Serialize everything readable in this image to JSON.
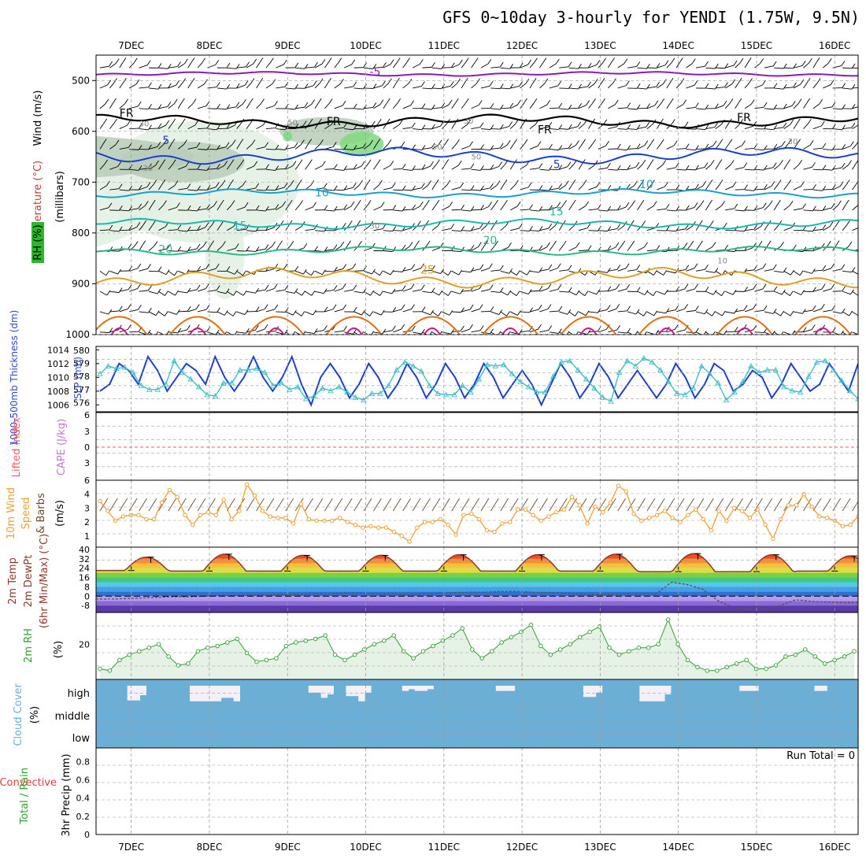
{
  "title": "GFS 0~10day 3-hourly for YENDI (1.75W, 9.5N)",
  "colors": {
    "frame": "#000000",
    "grid": "#9e9e9e",
    "rh_light": "#e3f0e3",
    "rh_mid": "#b8ccb8",
    "rh_dark": "#7fd97f",
    "wind_barb": "#000000",
    "slp": "#1f3fd0",
    "thickness": "#3cc0c8",
    "lifted_index": "#ff5a5a",
    "wind_speed": "#f0a030",
    "barb_10m": "#6b4a2a",
    "dewpoint": "#555555",
    "temp_curve": "#8b3a2a",
    "rh2m_fill": "#e6f2e6",
    "rh2m_line": "#2fa02f",
    "cloud": "#6baed6",
    "cloud_gap": "#f3f0f8",
    "temp_iso": [
      "#8a1ab8",
      "#1a3fd0",
      "#1a9fd0",
      "#1ab8b0",
      "#2ab88a",
      "#e0a020",
      "#e07010",
      "#d01a8a"
    ]
  },
  "chart_data": [
    {
      "type": "line",
      "panel": "upper-air",
      "ylabel_parts": [
        "Wind (m/s)",
        "Temperature (°C)",
        "RH (%)",
        "(millibars)"
      ],
      "y_ticks": [
        500,
        600,
        700,
        800,
        900,
        1000
      ],
      "ylim": [
        1000,
        450
      ],
      "x_ticks": [
        "7DEC",
        "8DEC",
        "9DEC",
        "10DEC",
        "11DEC",
        "12DEC",
        "13DEC",
        "14DEC",
        "15DEC",
        "16DEC"
      ],
      "isotherm_labels": [
        {
          "text": "-5",
          "day": 3.5,
          "p": 490
        },
        {
          "text": "FR",
          "day": 0.3,
          "p": 572
        },
        {
          "text": "FR",
          "day": 2.95,
          "p": 588
        },
        {
          "text": "FR",
          "day": 5.65,
          "p": 604
        },
        {
          "text": "FR",
          "day": 8.2,
          "p": 580
        },
        {
          "text": "5",
          "day": 0.85,
          "p": 625
        },
        {
          "text": "5",
          "day": 5.85,
          "p": 672
        },
        {
          "text": "10",
          "day": 2.8,
          "p": 728
        },
        {
          "text": "10",
          "day": 6.95,
          "p": 712
        },
        {
          "text": "15",
          "day": 1.75,
          "p": 793
        },
        {
          "text": "15",
          "day": 5.8,
          "p": 765
        },
        {
          "text": "20",
          "day": 0.8,
          "p": 840
        },
        {
          "text": "20",
          "day": 4.95,
          "p": 822
        },
        {
          "text": "25",
          "day": 4.15,
          "p": 880
        }
      ],
      "rh_labels": [
        {
          "text": "30",
          "day": 0.55,
          "p": 590
        },
        {
          "text": "30",
          "day": 0.6,
          "p": 678
        },
        {
          "text": "50",
          "day": 2.45,
          "p": 588
        },
        {
          "text": "30",
          "day": 4.7,
          "p": 585
        },
        {
          "text": "50",
          "day": 4.3,
          "p": 636
        },
        {
          "text": "50",
          "day": 4.8,
          "p": 655
        },
        {
          "text": "30",
          "day": 3.5,
          "p": 792
        },
        {
          "text": "30",
          "day": 8.85,
          "p": 625
        },
        {
          "text": "10",
          "day": 7.95,
          "p": 860
        }
      ],
      "isotherms": [
        {
          "name": "-5",
          "color": "#8a1ab8",
          "base": 487,
          "amp": 4
        },
        {
          "name": "FR",
          "color": "#000000",
          "base": 580,
          "amp": 12
        },
        {
          "name": "5",
          "color": "#1a3fd0",
          "base": 648,
          "amp": 15
        },
        {
          "name": "10",
          "color": "#1a9fd0",
          "base": 722,
          "amp": 8
        },
        {
          "name": "15",
          "color": "#1ab8b0",
          "base": 782,
          "amp": 9
        },
        {
          "name": "20",
          "color": "#2ab88a",
          "base": 835,
          "amp": 8
        },
        {
          "name": "25",
          "color": "#e0a020",
          "base": 888,
          "amp": 18
        }
      ]
    },
    {
      "type": "line",
      "panel": "slp-thickness",
      "ylabel_left": "1000-500mb Thickness (dm)",
      "ylabel_right": "SLP (mb)",
      "left_ticks": [
        576,
        577,
        578,
        579,
        580
      ],
      "right_ticks": [
        1006,
        1008,
        1010,
        1012,
        1014
      ],
      "slp_series": [
        1008,
        1009,
        1012,
        1011,
        1009,
        1013,
        1011,
        1008,
        1010,
        1012,
        1011,
        1009,
        1013,
        1010,
        1008,
        1010,
        1013,
        1010,
        1008,
        1010,
        1013,
        1009,
        1006,
        1010,
        1012,
        1010,
        1007,
        1009,
        1012,
        1010,
        1007,
        1009,
        1012,
        1010,
        1007,
        1009,
        1012,
        1010,
        1007,
        1009,
        1012,
        1010,
        1007,
        1009,
        1011,
        1009,
        1006,
        1009,
        1012,
        1010,
        1007,
        1009,
        1012,
        1010,
        1007,
        1009,
        1011,
        1009,
        1007,
        1009,
        1012,
        1010,
        1007,
        1009,
        1012,
        1011,
        1008,
        1009,
        1011,
        1010,
        1007,
        1009,
        1012,
        1010,
        1008,
        1009,
        1012,
        1010,
        1008,
        1012
      ],
      "thickness_series": [
        578.2,
        578.8,
        578.6,
        578.7,
        578.3,
        577.3,
        577.0,
        577.0,
        577.4,
        579.2,
        578.3,
        577.8,
        577.2,
        576.6,
        576.5,
        577.5,
        577.5,
        578.5,
        578.5,
        578.6,
        578.3,
        577.3,
        577.5,
        577.0,
        577.2,
        576.3,
        576.5,
        577.1,
        576.9,
        577.2,
        576.8,
        576.4,
        576.2,
        576.7,
        576.7,
        577.3,
        578.5,
        579.1,
        578.8,
        578.4,
        577.3,
        576.7,
        576.6,
        576.6,
        577.3,
        576.8,
        577.8,
        578.9,
        578.8,
        578.9,
        578.2,
        577.6,
        577.2,
        576.8,
        576.8,
        578.0,
        579.1,
        579.2,
        578.5,
        577.8,
        577.1,
        576.4,
        576.1,
        578.3,
        579.2,
        578.8,
        579.4,
        579.1,
        578.5,
        577.6,
        576.7,
        576.6,
        577.1,
        578.8,
        578.2,
        577.5,
        576.2,
        576.8,
        577.6,
        578.8,
        578.3,
        578.5,
        578.5,
        577.2,
        576.9,
        576.8,
        578.0,
        579.1,
        579.2,
        578.5,
        577.7,
        576.9,
        576.3
      ]
    },
    {
      "type": "line",
      "panel": "stability",
      "ylabel_left": "Lifted Index",
      "ylabel_right": "CAPE (J/kg)",
      "ticks": [
        "6",
        "3",
        "0",
        "3",
        "6"
      ],
      "lifted_index_line": 0
    },
    {
      "type": "line",
      "panel": "wind10m",
      "ylabel": "10m Wind Speed & Barbs (m/s)",
      "ylabel_lines": [
        "10m Wind",
        "Speed",
        "& Barbs"
      ],
      "ylabel_unit": "(m/s)",
      "ticks": [
        1,
        2,
        3,
        4
      ],
      "ylim": [
        0.2,
        5.0
      ],
      "speed_series": [
        3.5,
        2.8,
        2.1,
        2.4,
        2.5,
        2.5,
        2.2,
        2.2,
        3.4,
        4.3,
        3.8,
        2.5,
        1.8,
        2.5,
        2.7,
        2.5,
        3.6,
        2.2,
        2.8,
        4.7,
        3.9,
        2.8,
        2.4,
        2.3,
        2.3,
        1.9,
        3.3,
        2.2,
        2.1,
        2.1,
        2.1,
        2.3,
        2.0,
        1.8,
        1.6,
        1.7,
        1.6,
        1.6,
        1.3,
        1.0,
        0.6,
        1.6,
        2.0,
        2.0,
        2.2,
        1.8,
        1.1,
        2.5,
        2.6,
        2.2,
        1.4,
        1.3,
        1.9,
        2.0,
        2.9,
        2.9,
        2.5,
        2.1,
        2.4,
        2.7,
        2.9,
        3.8,
        3.2,
        1.9,
        3.1,
        2.7,
        3.4,
        4.6,
        4.2,
        2.6,
        2.1,
        2.3,
        2.5,
        2.8,
        2.3,
        2.0,
        2.5,
        2.9,
        2.2,
        1.4,
        2.8,
        2.1,
        3.0,
        2.8,
        2.3,
        2.9,
        1.8,
        0.8,
        2.2,
        3.2,
        3.2,
        4.0,
        3.1,
        2.4,
        2.3,
        2.1,
        1.7,
        1.8,
        2.4
      ]
    },
    {
      "type": "area",
      "panel": "temperature2m",
      "ylabel_lines": [
        "2m Temp",
        "2m DewPt",
        "(6hr Min/Max) (°C)"
      ],
      "ticks": [
        -8,
        0,
        8,
        16,
        24,
        32,
        40
      ],
      "tick_labels": [
        "-8",
        "0",
        "8",
        "16",
        "24",
        "32",
        "40"
      ],
      "ylim": [
        -14,
        42
      ],
      "daily_max": [
        33.5,
        36.0,
        35.0,
        35.0,
        35.5,
        35.5,
        36.0,
        36.5,
        35.5,
        34.5
      ],
      "daily_min": [
        22.0,
        21.5,
        21.5,
        21.5,
        21.5,
        21.5,
        21.5,
        21.0,
        21.0,
        21.5
      ],
      "dewpoint_series": [
        -2.5,
        -2.5,
        -2.0,
        -1.5,
        -1.0,
        -0.5,
        -0.5,
        0.0,
        0.5,
        0.5,
        1.0,
        1.0,
        1.5,
        1.5,
        2.0,
        2.0,
        2.5,
        2.5,
        2.0,
        2.0,
        1.5,
        2.0,
        2.5,
        3.0,
        3.5,
        3.5,
        4.0,
        4.0,
        3.5,
        3.0,
        2.5,
        2.0,
        1.5,
        1.5,
        2.0,
        2.0,
        2.0,
        12.0,
        10.0,
        6.0,
        -4.0,
        -10.0,
        -11.0,
        -11.0,
        -8.0,
        -3.0,
        -4.5,
        -5.0,
        -5.5,
        -5.5
      ]
    },
    {
      "type": "area",
      "panel": "rh2m",
      "ylabel": "2m RH (%)",
      "ticks": [
        20
      ],
      "ylim": [
        0,
        38
      ],
      "series": [
        6,
        5,
        11,
        14,
        16,
        18,
        20,
        13,
        8,
        9,
        16,
        18,
        19,
        21,
        23,
        15,
        10,
        11,
        12,
        19,
        21,
        22,
        23,
        25,
        14,
        11,
        14,
        17,
        20,
        22,
        25,
        16,
        12,
        16,
        19,
        22,
        25,
        29,
        17,
        12,
        16,
        21,
        24,
        27,
        31,
        19,
        14,
        17,
        20,
        24,
        27,
        30,
        18,
        14,
        16,
        18,
        18,
        20,
        34,
        20,
        11,
        7,
        5,
        5,
        7,
        9,
        11,
        6,
        6,
        8,
        13,
        14,
        17,
        13,
        9,
        11,
        13,
        16
      ]
    },
    {
      "type": "bar",
      "panel": "cloud",
      "ylabel": "Cloud Cover (%)",
      "levels": [
        "high",
        "middle",
        "low"
      ],
      "high_gaps": [
        0.0,
        0.0,
        0.0,
        0.0,
        0.0,
        0.85,
        0.85,
        0.55,
        0.0,
        0.0,
        0.0,
        0.0,
        0.0,
        0.0,
        0.0,
        0.9,
        0.9,
        0.9,
        0.9,
        0.9,
        0.7,
        0.7,
        0.9,
        0.0,
        0.0,
        0.0,
        0.0,
        0.0,
        0.0,
        0.0,
        0.0,
        0.0,
        0.0,
        0.0,
        0.4,
        0.4,
        0.7,
        0.5,
        0.0,
        0.0,
        0.6,
        0.6,
        0.9,
        0.4,
        0.0,
        0.0,
        0.0,
        0.0,
        0.0,
        0.3,
        0.2,
        0.3,
        0.3,
        0.2,
        0.0,
        0.0,
        0.0,
        0.0,
        0.0,
        0.0,
        0.0,
        0.0,
        0.0,
        0.0,
        0.3,
        0.3,
        0.3,
        0.0,
        0.0,
        0.0,
        0.0,
        0.0,
        0.0,
        0.0,
        0.0,
        0.0,
        0.0,
        0.0,
        0.65,
        0.65,
        0.4,
        0.0,
        0.0,
        0.0,
        0.0,
        0.0,
        0.0,
        0.9,
        0.9,
        0.9,
        0.9,
        0.5,
        0.0,
        0.0,
        0.0,
        0.0,
        0.0,
        0.0,
        0.0,
        0.0,
        0.0,
        0.0,
        0.0,
        0.3,
        0.3,
        0.3,
        0.0,
        0.0,
        0.0,
        0.0,
        0.0,
        0.0,
        0.0,
        0.0,
        0.0,
        0.3,
        0.3,
        0.0,
        0.0,
        0.0,
        0.0,
        0.0
      ]
    },
    {
      "type": "bar",
      "panel": "precip",
      "ylabel_left_lines": [
        "Total / Rain",
        "Convective"
      ],
      "ylabel": "3hr Precip (mm)",
      "ticks": [
        0,
        0.2,
        0.4,
        0.6,
        0.8
      ],
      "ylim": [
        0,
        0.95
      ],
      "run_total_label": "Run Total = 0",
      "values": []
    }
  ]
}
